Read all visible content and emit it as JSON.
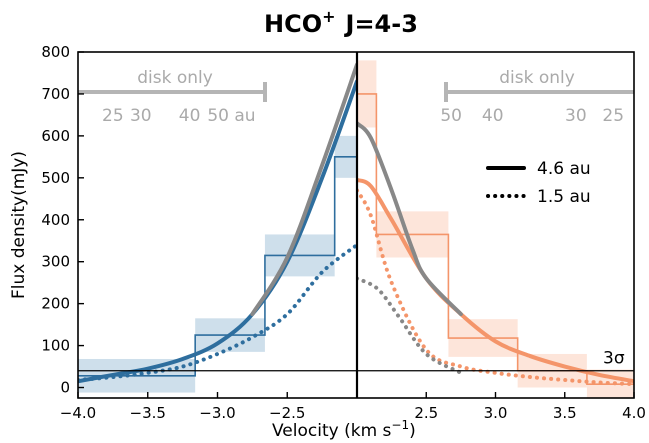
{
  "chart_data": {
    "type": "line",
    "title": "HCO",
    "title_sup": "+",
    "title_suffix": "J=4-3",
    "xlabel": "Velocity (km s",
    "xlabel_sup": "−1",
    "xlabel_end": ")",
    "ylabel": "Flux density(mJy)",
    "ylim": [
      -25,
      800
    ],
    "y_ticks": [
      "0",
      "100",
      "200",
      "300",
      "400",
      "500",
      "600",
      "700",
      "800"
    ],
    "left_panel": {
      "xlim": [
        -4.0,
        -2.0
      ],
      "x_ticks": [
        "−4.0",
        "−3.5",
        "−3.0",
        "−2.5"
      ],
      "x_tick_values": [
        -4.0,
        -3.5,
        -3.0,
        -2.5
      ],
      "color": "#2e6e9e",
      "band_color": "#c5d9e8",
      "annotation": {
        "label": "disk only",
        "radii": [
          {
            "text": "25",
            "v": -3.75
          },
          {
            "text": "30",
            "v": -3.55
          },
          {
            "text": "40",
            "v": -3.2
          },
          {
            "text": "50 au",
            "v": -2.9
          }
        ]
      },
      "observed_steps": [
        {
          "x0": -4.0,
          "x1": -3.16,
          "y": 28,
          "err": 40
        },
        {
          "x0": -3.16,
          "x1": -2.66,
          "y": 125,
          "err": 40
        },
        {
          "x0": -2.66,
          "x1": -2.16,
          "y": 315,
          "err": 50
        },
        {
          "x0": -2.16,
          "x1": -2.0,
          "y": 550,
          "err": 50
        }
      ],
      "series": [
        {
          "name": "4.6 au",
          "style": "solid",
          "color": "#2e6e9e",
          "x": [
            -4.0,
            -3.75,
            -3.5,
            -3.25,
            -3.0,
            -2.75,
            -2.5,
            -2.25,
            -2.0
          ],
          "y": [
            15,
            30,
            45,
            68,
            105,
            175,
            300,
            500,
            730
          ]
        },
        {
          "name": "1.5 au",
          "style": "dotted",
          "color": "#2e6e9e",
          "x": [
            -4.0,
            -3.75,
            -3.5,
            -3.25,
            -3.0,
            -2.75,
            -2.5,
            -2.25,
            -2.0
          ],
          "y": [
            18,
            25,
            35,
            50,
            80,
            120,
            175,
            275,
            340
          ]
        },
        {
          "name": "model",
          "style": "solid",
          "color": "#888888",
          "x": [
            -2.75,
            -2.5,
            -2.25,
            -2.0
          ],
          "y": [
            175,
            310,
            530,
            770
          ]
        }
      ]
    },
    "right_panel": {
      "xlim": [
        2.0,
        4.0
      ],
      "x_ticks": [
        "2.5",
        "3.0",
        "3.5",
        "4.0"
      ],
      "x_tick_values": [
        2.5,
        3.0,
        3.5,
        4.0
      ],
      "color": "#f4956a",
      "band_color": "#fde0d3",
      "annotation": {
        "label": "disk only",
        "radii": [
          {
            "text": "50",
            "v": 2.68
          },
          {
            "text": "40",
            "v": 2.98
          },
          {
            "text": "30",
            "v": 3.58
          },
          {
            "text": "25",
            "v": 3.85
          }
        ]
      },
      "observed_steps": [
        {
          "x0": 2.0,
          "x1": 2.14,
          "y": 700,
          "err": 80
        },
        {
          "x0": 2.14,
          "x1": 2.66,
          "y": 365,
          "err": 55
        },
        {
          "x0": 2.66,
          "x1": 3.16,
          "y": 118,
          "err": 45
        },
        {
          "x0": 3.16,
          "x1": 3.66,
          "y": 40,
          "err": 40
        },
        {
          "x0": 3.66,
          "x1": 4.0,
          "y": 8,
          "err": 35
        }
      ],
      "series": [
        {
          "name": "4.6 au",
          "style": "solid",
          "color": "#f4956a",
          "x": [
            2.0,
            2.1,
            2.25,
            2.5,
            2.75,
            3.0,
            3.25,
            3.5,
            3.75,
            4.0
          ],
          "y": [
            495,
            480,
            400,
            260,
            175,
            110,
            75,
            50,
            30,
            15
          ]
        },
        {
          "name": "1.5 au",
          "style": "dotted",
          "color": "#f4956a",
          "x": [
            2.0,
            2.1,
            2.25,
            2.5,
            2.75,
            3.0,
            3.25,
            3.5,
            3.75,
            4.0
          ],
          "y": [
            470,
            410,
            250,
            90,
            50,
            35,
            25,
            18,
            12,
            8
          ]
        },
        {
          "name": "model",
          "style": "solid",
          "color": "#888888",
          "x": [
            2.0,
            2.1,
            2.25,
            2.4,
            2.5,
            2.75
          ],
          "y": [
            630,
            595,
            470,
            330,
            260,
            175
          ]
        },
        {
          "name": "model dotted",
          "style": "dotted",
          "color": "#888888",
          "x": [
            2.0,
            2.15,
            2.3,
            2.5,
            2.75
          ],
          "y": [
            260,
            235,
            170,
            80,
            35
          ]
        }
      ]
    },
    "threshold": {
      "label": "3σ",
      "y": 40
    },
    "legend": [
      {
        "label": "4.6 au",
        "style": "solid"
      },
      {
        "label": "1.5 au",
        "style": "dotted"
      }
    ],
    "legend_placement": "upper-right of right panel"
  }
}
